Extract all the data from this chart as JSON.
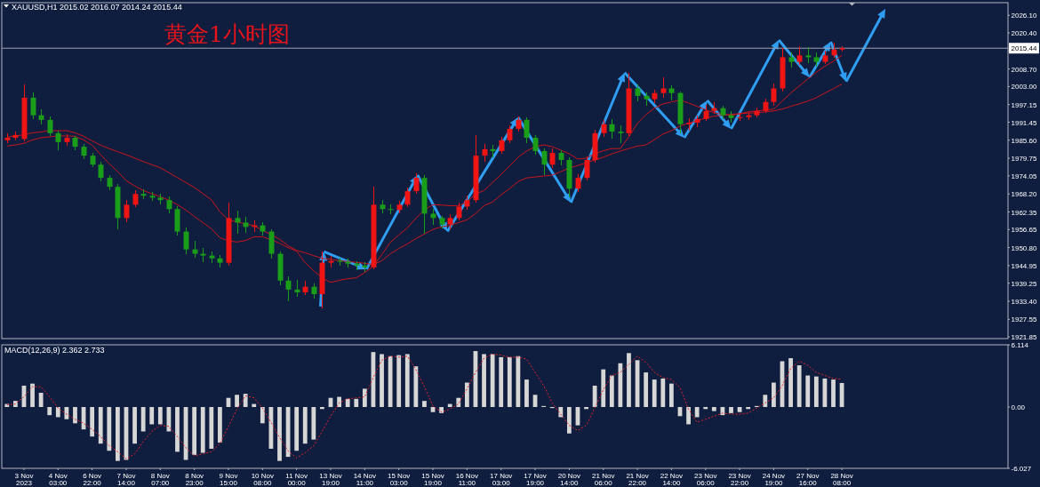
{
  "chart_data": [
    {
      "type": "candlestick",
      "title": "黄金1小时图",
      "subtitle": "XAUUSD,H1 2015.02 2016.07 2014.24 2015.44",
      "categories": [
        null,
        null,
        null,
        null,
        null,
        null,
        null,
        null,
        null,
        null,
        null,
        null,
        null,
        null,
        null,
        null,
        null,
        null,
        null,
        null,
        null,
        null,
        null,
        null,
        null,
        null,
        null,
        null,
        null,
        null,
        null,
        null,
        null,
        null,
        null,
        null,
        null,
        null,
        null,
        null,
        null,
        null,
        null,
        null,
        null,
        null,
        null,
        null,
        null,
        null,
        null,
        null,
        null,
        null,
        null,
        null,
        null,
        null,
        null,
        null,
        null,
        null,
        null,
        null,
        null,
        null,
        null,
        null,
        null,
        null,
        null,
        null,
        null,
        null,
        null,
        null,
        null,
        null,
        null,
        null,
        null,
        null,
        null,
        null,
        null,
        null,
        null,
        null,
        null,
        null,
        null,
        null,
        null,
        null,
        null,
        null,
        null,
        null,
        null,
        null,
        null,
        null,
        null,
        null,
        null,
        null,
        null,
        null,
        null,
        null,
        null,
        null,
        null,
        null,
        null,
        null,
        null,
        null
      ],
      "ohlc": [
        [
          1985.6,
          1987.8,
          1984.8,
          1986.4
        ],
        [
          1986.4,
          1988.5,
          1985.5,
          1987.3
        ],
        [
          1986.0,
          2003.8,
          1985.2,
          1999.4
        ],
        [
          1999.4,
          2001.2,
          1992.5,
          1993.7
        ],
        [
          1993.7,
          1995.6,
          1990.8,
          1992.2
        ],
        [
          1992.2,
          1993.4,
          1986.9,
          1987.9
        ],
        [
          1987.9,
          1988.8,
          1982.4,
          1985.0
        ],
        [
          1985.0,
          1987.6,
          1983.8,
          1986.4
        ],
        [
          1986.4,
          1987.0,
          1982.4,
          1983.5
        ],
        [
          1983.5,
          1984.4,
          1979.5,
          1980.6
        ],
        [
          1980.6,
          1981.5,
          1976.8,
          1977.7
        ],
        [
          1977.7,
          1978.6,
          1972.2,
          1973.4
        ],
        [
          1973.4,
          1974.3,
          1969.3,
          1970.5
        ],
        [
          1970.5,
          1971.3,
          1956.6,
          1960.4
        ],
        [
          1960.4,
          1966.2,
          1958.9,
          1964.7
        ],
        [
          1964.7,
          1969.3,
          1963.8,
          1968.2
        ],
        [
          1968.2,
          1969.6,
          1966.4,
          1967.6
        ],
        [
          1967.6,
          1968.8,
          1965.9,
          1967.0
        ],
        [
          1967.0,
          1968.2,
          1964.7,
          1966.2
        ],
        [
          1966.2,
          1967.3,
          1961.8,
          1963.3
        ],
        [
          1963.3,
          1964.1,
          1954.8,
          1956.0
        ],
        [
          1956.0,
          1957.2,
          1948.8,
          1950.2
        ],
        [
          1950.2,
          1953.1,
          1947.4,
          1948.8
        ],
        [
          1948.8,
          1950.8,
          1946.2,
          1948.2
        ],
        [
          1948.2,
          1949.6,
          1945.9,
          1947.3
        ],
        [
          1947.3,
          1948.5,
          1944.4,
          1945.9
        ],
        [
          1945.9,
          1965.3,
          1945.0,
          1960.4
        ],
        [
          1960.4,
          1962.7,
          1955.4,
          1958.9
        ],
        [
          1958.9,
          1960.7,
          1955.7,
          1957.5
        ],
        [
          1957.5,
          1959.5,
          1956.0,
          1958.0
        ],
        [
          1958.0,
          1958.9,
          1954.6,
          1956.0
        ],
        [
          1956.0,
          1956.6,
          1947.3,
          1948.8
        ],
        [
          1948.8,
          1949.6,
          1938.6,
          1940.1
        ],
        [
          1940.1,
          1941.5,
          1933.5,
          1937.2
        ],
        [
          1937.2,
          1940.4,
          1934.8,
          1936.3
        ],
        [
          1936.3,
          1940.1,
          1935.4,
          1938.1
        ],
        [
          1938.1,
          1939.2,
          1934.3,
          1935.7
        ],
        [
          1935.7,
          1949.5,
          1931.1,
          1945.9
        ],
        [
          1945.9,
          1948.2,
          1944.4,
          1946.5
        ],
        [
          1946.5,
          1947.6,
          1944.9,
          1946.2
        ],
        [
          1946.2,
          1947.3,
          1944.4,
          1945.6
        ],
        [
          1945.6,
          1946.5,
          1943.6,
          1945.0
        ],
        [
          1945.0,
          1946.2,
          1943.0,
          1944.4
        ],
        [
          1944.4,
          1970.5,
          1943.8,
          1964.7
        ],
        [
          1964.7,
          1966.2,
          1961.8,
          1963.3
        ],
        [
          1963.3,
          1964.7,
          1961.5,
          1963.0
        ],
        [
          1963.0,
          1965.9,
          1961.8,
          1964.7
        ],
        [
          1964.7,
          1970.2,
          1963.8,
          1969.1
        ],
        [
          1969.1,
          1974.9,
          1968.2,
          1973.4
        ],
        [
          1973.4,
          1974.3,
          1955.2,
          1961.8
        ],
        [
          1961.8,
          1963.3,
          1958.3,
          1960.4
        ],
        [
          1960.4,
          1961.2,
          1956.9,
          1958.3
        ],
        [
          1958.3,
          1961.5,
          1956.6,
          1960.4
        ],
        [
          1960.4,
          1965.3,
          1959.5,
          1964.1
        ],
        [
          1964.1,
          1967.6,
          1963.0,
          1966.2
        ],
        [
          1966.2,
          1987.3,
          1965.3,
          1980.6
        ],
        [
          1980.6,
          1984.4,
          1978.6,
          1982.7
        ],
        [
          1982.7,
          1984.1,
          1980.0,
          1982.1
        ],
        [
          1982.1,
          1986.7,
          1981.2,
          1985.6
        ],
        [
          1985.6,
          1990.5,
          1984.7,
          1989.3
        ],
        [
          1989.3,
          1993.4,
          1988.4,
          1992.2
        ],
        [
          1992.2,
          1993.1,
          1984.7,
          1986.4
        ],
        [
          1986.4,
          1987.3,
          1980.9,
          1982.1
        ],
        [
          1982.1,
          1983.0,
          1974.4,
          1977.7
        ],
        [
          1977.7,
          1983.0,
          1976.5,
          1981.5
        ],
        [
          1981.5,
          1982.4,
          1977.4,
          1979.2
        ],
        [
          1979.2,
          1980.0,
          1967.0,
          1969.9
        ],
        [
          1969.9,
          1974.6,
          1968.8,
          1973.4
        ],
        [
          1973.4,
          1980.3,
          1972.5,
          1979.2
        ],
        [
          1979.2,
          1989.0,
          1978.3,
          1987.9
        ],
        [
          1987.9,
          1992.2,
          1986.7,
          1990.8
        ],
        [
          1990.8,
          1992.5,
          1986.1,
          1988.4
        ],
        [
          1988.4,
          1990.5,
          1984.7,
          1987.9
        ],
        [
          1987.9,
          2007.3,
          1987.0,
          2002.4
        ],
        [
          2002.4,
          2003.8,
          1998.3,
          2000.0
        ],
        [
          2000.0,
          2001.2,
          1996.9,
          1998.9
        ],
        [
          1998.9,
          2002.1,
          1997.7,
          2000.9
        ],
        [
          2000.9,
          2006.1,
          1999.5,
          2002.4
        ],
        [
          2002.4,
          2003.5,
          1998.6,
          2000.9
        ],
        [
          2000.9,
          2001.5,
          1987.9,
          1990.8
        ],
        [
          1990.8,
          1992.8,
          1988.7,
          1991.3
        ],
        [
          1991.3,
          1993.7,
          1989.9,
          1992.5
        ],
        [
          1992.5,
          1997.1,
          1991.9,
          1995.1
        ],
        [
          1995.1,
          1998.0,
          1994.2,
          1996.0
        ],
        [
          1996.0,
          1996.9,
          1992.5,
          1993.7
        ],
        [
          1993.7,
          1995.1,
          1991.3,
          1992.8
        ],
        [
          1992.8,
          1994.5,
          1991.9,
          1993.1
        ],
        [
          1993.1,
          1994.8,
          1992.2,
          1993.7
        ],
        [
          1993.7,
          1996.3,
          1993.1,
          1995.1
        ],
        [
          1995.1,
          1999.2,
          1994.5,
          1998.0
        ],
        [
          1998.0,
          2004.1,
          1996.9,
          2002.4
        ],
        [
          2002.4,
          2015.4,
          2001.5,
          2012.5
        ],
        [
          2012.5,
          2014.0,
          2009.3,
          2011.0
        ],
        [
          2011.0,
          2016.0,
          2009.9,
          2013.1
        ],
        [
          2013.1,
          2015.7,
          2010.5,
          2012.5
        ],
        [
          2012.5,
          2014.0,
          2009.6,
          2011.0
        ],
        [
          2011.0,
          2014.6,
          2010.2,
          2013.1
        ],
        [
          2013.1,
          2017.2,
          2012.2,
          2015.02
        ],
        [
          2015.02,
          2016.07,
          2014.24,
          2015.44
        ],
        null,
        null,
        null,
        null,
        null,
        null,
        null,
        null,
        null,
        null,
        null,
        null,
        null,
        null,
        null,
        null,
        null,
        null,
        null
      ],
      "colors": [
        "#f01414",
        "#f01414",
        "#f01414",
        "#1a9e1a",
        "#1a9e1a",
        "#1a9e1a",
        "#1a9e1a",
        "#f01414",
        "#1a9e1a",
        "#1a9e1a",
        "#1a9e1a",
        "#1a9e1a",
        "#1a9e1a",
        "#1a9e1a",
        "#f01414",
        "#f01414",
        "#1a9e1a",
        "#1a9e1a",
        "#1a9e1a",
        "#1a9e1a",
        "#1a9e1a",
        "#1a9e1a",
        "#1a9e1a",
        "#1a9e1a",
        "#1a9e1a",
        "#1a9e1a",
        "#f01414",
        "#1a9e1a",
        "#1a9e1a",
        "#f01414",
        "#1a9e1a",
        "#1a9e1a",
        "#1a9e1a",
        "#1a9e1a",
        "#1a9e1a",
        "#f01414",
        "#1a9e1a",
        "#f01414",
        "#f01414",
        "#1a9e1a",
        "#1a9e1a",
        "#1a9e1a",
        "#1a9e1a",
        "#f01414",
        "#1a9e1a",
        "#1a9e1a",
        "#f01414",
        "#f01414",
        "#f01414",
        "#1a9e1a",
        "#1a9e1a",
        "#1a9e1a",
        "#f01414",
        "#f01414",
        "#f01414",
        "#f01414",
        "#f01414",
        "#1a9e1a",
        "#f01414",
        "#f01414",
        "#f01414",
        "#1a9e1a",
        "#1a9e1a",
        "#1a9e1a",
        "#f01414",
        "#1a9e1a",
        "#1a9e1a",
        "#f01414",
        "#f01414",
        "#f01414",
        "#f01414",
        "#1a9e1a",
        "#1a9e1a",
        "#f01414",
        "#1a9e1a",
        "#1a9e1a",
        "#f01414",
        "#f01414",
        "#1a9e1a",
        "#1a9e1a",
        "#f01414",
        "#f01414",
        "#f01414",
        "#f01414",
        "#1a9e1a",
        "#1a9e1a",
        "#f01414",
        "#f01414",
        "#f01414",
        "#f01414",
        "#f01414",
        "#f01414",
        "#1a9e1a",
        "#f01414",
        "#1a9e1a",
        "#1a9e1a",
        "#f01414",
        "#f01414",
        "#f01414",
        null,
        null,
        null,
        null,
        null,
        null,
        null,
        null,
        null,
        null,
        null,
        null,
        null,
        null,
        null,
        null,
        null,
        null,
        null
      ],
      "series": [
        {
          "type": "line",
          "color": "#c8141e",
          "values": [
            1983.7,
            1984.1,
            1984.6,
            1985.7,
            1986.4,
            1986.7,
            1987.0,
            1987.0,
            1986.9,
            1985.7,
            1984.0,
            1980.9,
            1978.0,
            1975.4,
            1972.5,
            1970.8,
            1969.3,
            1968.3,
            1967.3,
            1966.2,
            1964.7,
            1963.0,
            1960.9,
            1958.9,
            1956.9,
            1954.0,
            1953.0,
            1952.6,
            1953.1,
            1954.3,
            1954.3,
            1953.4,
            1952.2,
            1950.8,
            1949.6,
            1945.9,
            1943.3,
            1941.0,
            1939.5,
            1940.2,
            1940.7,
            1941.0,
            1942.7,
            1944.7,
            1948.5,
            1952.5,
            1954.9,
            1957.2,
            1960.3,
            1963.0,
            1964.7,
            1964.6,
            1964.4,
            1964.3,
            1965.6,
            1968.2,
            1969.3,
            1971.9,
            1974.5,
            1977.2,
            1980.1,
            1982.1,
            1983.5,
            1984.1,
            1983.5,
            1982.4,
            1981.2,
            1979.5,
            1979.8,
            1981.2,
            1982.2,
            1982.9,
            1982.9,
            1986.7,
            1991.1,
            1993.9,
            1996.0,
            1997.4,
            1998.0,
            1998.6,
            1997.7,
            1996.6,
            1995.5,
            1994.5,
            1994.0,
            1993.7,
            1994.2,
            1994.8,
            1995.1,
            1995.4,
            1995.7,
            1998.3,
            2000.9,
            2003.2,
            2005.5,
            2007.6,
            2009.6,
            2011.2,
            2013.1,
            null,
            null,
            null,
            null,
            null,
            null,
            null,
            null,
            null,
            null,
            null,
            null,
            null,
            null,
            null,
            null,
            null,
            null,
            null
          ]
        },
        {
          "type": "line",
          "color": "#c8141e",
          "values": [
            1986.6,
            1987.0,
            1987.4,
            1988.0,
            1988.3,
            1988.7,
            1988.7,
            1988.7,
            1988.0,
            1986.9,
            1985.4,
            1984.0,
            1982.9,
            1981.9,
            1980.9,
            1979.8,
            1978.7,
            1977.7,
            1976.7,
            1975.1,
            1973.5,
            1971.9,
            1970.3,
            1968.3,
            1966.3,
            1962.4,
            1959.8,
            1959.1,
            1958.5,
            1957.9,
            1956.4,
            1955.0,
            1953.5,
            1951.4,
            1949.9,
            1949.1,
            1948.2,
            1947.3,
            1947.0,
            1946.6,
            1946.3,
            1946.0,
            1945.7,
            1945.3,
            1946.5,
            1948.8,
            1950.5,
            1952.0,
            1953.7,
            1955.2,
            1956.7,
            1957.5,
            1958.0,
            1958.9,
            1959.8,
            1961.8,
            1964.4,
            1965.6,
            1967.9,
            1969.9,
            1972.2,
            1973.4,
            1973.7,
            1974.0,
            1974.3,
            1975.4,
            1976.6,
            1977.4,
            1978.3,
            1979.2,
            1980.1,
            1981.2,
            1982.1,
            1982.9,
            1983.7,
            1984.1,
            1985.8,
            1987.6,
            1988.7,
            1990.2,
            1991.1,
            1991.9,
            1992.8,
            1993.4,
            1993.7,
            1994.0,
            1994.2,
            1994.4,
            1994.5,
            1994.8,
            1995.1,
            1995.7,
            1996.6,
            1997.4,
            1998.3,
            1999.4,
            2000.9,
            2002.3,
            2003.8,
            null,
            null,
            null,
            null,
            null,
            null,
            null,
            null,
            null,
            null,
            null,
            null,
            null,
            null,
            null,
            null,
            null,
            null,
            null
          ]
        }
      ],
      "ylim": [
        1921.3,
        2030.2
      ],
      "yticks": [
        {
          "value": 2026.1,
          "label": "2026.10"
        },
        {
          "value": 2020.4,
          "label": "2020.40"
        },
        {
          "value": 2014.55,
          "label": null
        },
        {
          "value": 2008.7,
          "label": "2008.70"
        },
        {
          "value": 2003.0,
          "label": "2003.00"
        },
        {
          "value": 1997.15,
          "label": "1997.15"
        },
        {
          "value": 1991.45,
          "label": "1991.45"
        },
        {
          "value": 1985.6,
          "label": "1985.60"
        },
        {
          "value": 1979.75,
          "label": "1979.75"
        },
        {
          "value": 1974.05,
          "label": "1974.05"
        },
        {
          "value": 1968.2,
          "label": "1968.20"
        },
        {
          "value": 1962.35,
          "label": "1962.35"
        },
        {
          "value": 1956.65,
          "label": "1956.65"
        },
        {
          "value": 1950.8,
          "label": "1950.80"
        },
        {
          "value": 1944.95,
          "label": "1944.95"
        },
        {
          "value": 1939.25,
          "label": "1939.25"
        },
        {
          "value": 1933.4,
          "label": "1933.40"
        },
        {
          "value": 1927.55,
          "label": "1927.55"
        },
        {
          "value": 1921.85,
          "label": "1921.85"
        }
      ],
      "ref_lines": [
        {
          "axis": "y",
          "value": 2015.44,
          "label": "2015.44",
          "color": "#9ea3b3"
        }
      ]
    },
    {
      "type": "bar",
      "title": "MACD(12,26,9) 2.362 2.733",
      "categories": [
        null,
        null,
        "3 Nov 2023",
        null,
        null,
        null,
        "4 Nov 03:00",
        null,
        null,
        null,
        "6 Nov 22:00",
        null,
        null,
        null,
        "7 Nov 14:00",
        null,
        null,
        null,
        "8 Nov 07:00",
        null,
        null,
        null,
        "8 Nov 23:00",
        null,
        null,
        null,
        "9 Nov 15:00",
        null,
        null,
        null,
        "10 Nov 08:00",
        null,
        null,
        null,
        "11 Nov 00:00",
        null,
        null,
        null,
        "13 Nov 19:00",
        null,
        null,
        null,
        "14 Nov 11:00",
        null,
        null,
        null,
        "15 Nov 03:00",
        null,
        null,
        null,
        "15 Nov 19:00",
        null,
        null,
        null,
        "16 Nov 11:00",
        null,
        null,
        null,
        "17 Nov 03:00",
        null,
        null,
        null,
        "17 Nov 19:00",
        null,
        null,
        null,
        "20 Nov 14:00",
        null,
        null,
        null,
        "21 Nov 06:00",
        null,
        null,
        null,
        "21 Nov 22:00",
        null,
        null,
        null,
        "22 Nov 14:00",
        null,
        null,
        null,
        "23 Nov 06:00",
        null,
        null,
        null,
        "23 Nov 22:00",
        null,
        null,
        null,
        "24 Nov 19:00",
        null,
        null,
        null,
        "27 Nov 16:00",
        null,
        null,
        null,
        "28 Nov 08:00",
        null,
        null,
        null,
        null,
        null,
        null,
        null,
        null,
        null,
        null,
        null,
        null,
        null,
        null,
        null,
        null,
        null,
        null,
        null
      ],
      "series": [
        {
          "color": "#d6d6d6",
          "values": [
            0.3,
            0.6,
            2.1,
            2.3,
            1.4,
            -0.8,
            -1.0,
            -1.2,
            -1.6,
            -2.2,
            -2.9,
            -3.6,
            -4.3,
            -5.3,
            -5.2,
            -3.6,
            -2.4,
            -1.7,
            -1.7,
            -2.4,
            -4.4,
            -5.2,
            -4.7,
            -4.5,
            -4.1,
            -3.5,
            0.9,
            1.2,
            1.3,
            0.3,
            -1.6,
            -4.1,
            -5.3,
            -4.9,
            -4.3,
            -3.6,
            -3.2,
            -0.2,
            0.9,
            1.0,
            0.8,
            0.8,
            1.8,
            5.4,
            5.2,
            5.0,
            5.1,
            5.2,
            4.0,
            0.6,
            -0.5,
            -0.6,
            0.3,
            0.9,
            2.4,
            5.5,
            5.2,
            5.2,
            4.9,
            4.9,
            5.0,
            2.7,
            1.2,
            0.1,
            -0.1,
            -1.0,
            -2.6,
            -1.8,
            -0.2,
            2.1,
            3.7,
            3.1,
            4.3,
            5.3,
            4.6,
            3.4,
            2.7,
            2.8,
            2.3,
            -0.9,
            -1.7,
            -1.0,
            -0.2,
            -0.4,
            -0.8,
            -0.6,
            -0.5,
            -0.2,
            0.1,
            1.2,
            2.4,
            4.5,
            4.8,
            4.1,
            3.1,
            3.0,
            2.8,
            2.7,
            2.362,
            null,
            null,
            null,
            null,
            null,
            null,
            null,
            null,
            null,
            null,
            null,
            null,
            null,
            null,
            null,
            null,
            null,
            null,
            null
          ]
        },
        {
          "type": "line",
          "color": "#e0242a",
          "line_style": "dotted",
          "values": [
            0.2,
            0.3,
            1.0,
            2.0,
            2.0,
            1.0,
            -0.1,
            -0.7,
            -1.2,
            -1.6,
            -2.2,
            -2.9,
            -3.8,
            -4.4,
            -5.1,
            -4.6,
            -3.4,
            -2.4,
            -1.8,
            -1.9,
            -2.9,
            -4.0,
            -4.8,
            -4.6,
            -4.4,
            -3.6,
            -1.9,
            -0.2,
            1.1,
            0.9,
            -0.1,
            -1.5,
            -3.0,
            -4.3,
            -5.0,
            -4.5,
            -3.8,
            -2.4,
            -0.9,
            0.4,
            0.8,
            0.9,
            1.0,
            2.9,
            4.6,
            5.0,
            4.9,
            5.0,
            3.7,
            2.0,
            0.1,
            -0.5,
            -0.2,
            0.3,
            1.8,
            3.4,
            4.8,
            5.2,
            5.1,
            4.9,
            4.9,
            4.7,
            3.4,
            2.1,
            0.4,
            -0.7,
            -1.8,
            -2.3,
            -1.8,
            -0.1,
            1.7,
            3.1,
            3.4,
            4.2,
            5.0,
            4.4,
            3.4,
            2.9,
            2.7,
            1.9,
            -0.2,
            -1.5,
            -1.2,
            -0.9,
            -0.6,
            -0.7,
            -0.7,
            -0.6,
            -0.1,
            0.4,
            0.9,
            2.1,
            3.8,
            4.5,
            4.1,
            3.4,
            3.1,
            2.8,
            2.733,
            null,
            null,
            null,
            null,
            null,
            null,
            null,
            null,
            null,
            null,
            null,
            null,
            null,
            null,
            null,
            null,
            null,
            null,
            null
          ]
        }
      ],
      "ylim": [
        -6.027,
        6.114
      ],
      "yticks": [
        6.114,
        {
          "value": 0,
          "label": "0.00"
        },
        -6.027
      ]
    }
  ]
}
